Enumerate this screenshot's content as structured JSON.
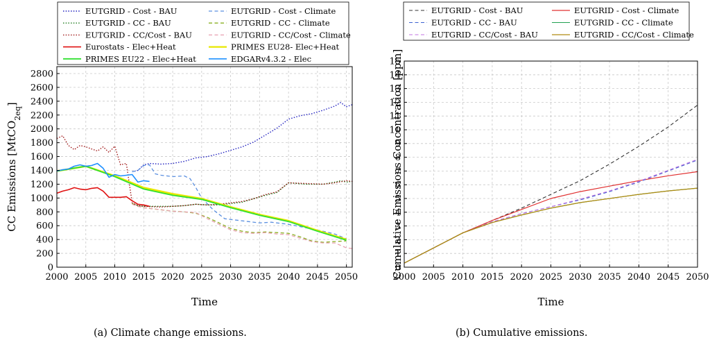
{
  "chart_data": [
    {
      "type": "line",
      "ylabel": "CC Emissions [MtCO₂eq]",
      "xlabel": "Time",
      "caption": "(a)  Climate change emissions.",
      "xlim": [
        2000,
        2051
      ],
      "ylim": [
        0,
        2900
      ],
      "xticks": [
        2000,
        2005,
        2010,
        2015,
        2020,
        2025,
        2030,
        2035,
        2040,
        2045,
        2050
      ],
      "yticks": [
        0,
        200,
        400,
        600,
        800,
        1000,
        1200,
        1400,
        1600,
        1800,
        2000,
        2200,
        2400,
        2600,
        2800
      ],
      "grid": true,
      "legend_position": "top",
      "series": [
        {
          "name": "EUTGRID - Cost - BAU",
          "color": "#1f1fbf",
          "dash": "dot",
          "width": 1.4,
          "x": [
            2013,
            2014,
            2015,
            2016,
            2018,
            2020,
            2022,
            2024,
            2026,
            2028,
            2030,
            2032,
            2034,
            2036,
            2038,
            2040,
            2042,
            2044,
            2046,
            2048,
            2049,
            2050,
            2051
          ],
          "y": [
            1380,
            1400,
            1480,
            1500,
            1490,
            1500,
            1530,
            1580,
            1600,
            1640,
            1690,
            1740,
            1810,
            1910,
            2010,
            2140,
            2190,
            2220,
            2270,
            2330,
            2380,
            2320,
            2350
          ]
        },
        {
          "name": "EUTGRID - Cost - Climate",
          "color": "#5a8fe0",
          "dash": "dash",
          "width": 1.3,
          "x": [
            2013,
            2014,
            2015,
            2016,
            2017,
            2018,
            2020,
            2022,
            2023,
            2024,
            2025,
            2027,
            2029,
            2031,
            2033,
            2035,
            2037,
            2040,
            2043,
            2046,
            2048,
            2050
          ],
          "y": [
            1380,
            1400,
            1470,
            1480,
            1350,
            1330,
            1310,
            1320,
            1280,
            1150,
            1000,
            830,
            700,
            680,
            660,
            640,
            650,
            620,
            570,
            520,
            480,
            410
          ]
        },
        {
          "name": "EUTGRID - CC - BAU",
          "color": "#1a7a1a",
          "dash": "dot",
          "width": 1.4,
          "x": [
            2013,
            2014,
            2015,
            2018,
            2020,
            2022,
            2024,
            2026,
            2028,
            2030,
            2032,
            2034,
            2036,
            2038,
            2040,
            2043,
            2046,
            2048,
            2049,
            2050,
            2051
          ],
          "y": [
            920,
            890,
            880,
            880,
            880,
            890,
            910,
            900,
            900,
            920,
            940,
            990,
            1040,
            1080,
            1220,
            1200,
            1200,
            1230,
            1250,
            1230,
            1240
          ]
        },
        {
          "name": "EUTGRID - CC - Climate",
          "color": "#8ab020",
          "dash": "dash",
          "width": 1.3,
          "x": [
            2013,
            2014,
            2015,
            2016,
            2018,
            2020,
            2022,
            2024,
            2026,
            2028,
            2030,
            2032,
            2034,
            2036,
            2038,
            2040,
            2042,
            2044,
            2046,
            2048,
            2050
          ],
          "y": [
            920,
            880,
            860,
            850,
            830,
            810,
            800,
            780,
            720,
            640,
            560,
            520,
            500,
            510,
            500,
            490,
            440,
            380,
            360,
            370,
            380
          ]
        },
        {
          "name": "EUTGRID - CC/Cost - BAU",
          "color": "#a01818",
          "dash": "dot",
          "width": 1.4,
          "x": [
            2000,
            2001,
            2002,
            2003,
            2004,
            2005,
            2006,
            2007,
            2008,
            2009,
            2010,
            2011,
            2012,
            2013,
            2014,
            2015,
            2018,
            2020,
            2022,
            2024,
            2026,
            2028,
            2030,
            2032,
            2034,
            2036,
            2038,
            2040,
            2043,
            2046,
            2048,
            2050,
            2051
          ],
          "y": [
            1860,
            1900,
            1760,
            1700,
            1760,
            1740,
            1710,
            1680,
            1740,
            1660,
            1750,
            1480,
            1500,
            930,
            890,
            880,
            870,
            880,
            890,
            910,
            900,
            910,
            930,
            950,
            990,
            1050,
            1090,
            1220,
            1210,
            1200,
            1220,
            1250,
            1240
          ]
        },
        {
          "name": "EUTGRID - CC/Cost - Climate",
          "color": "#e8a0b0",
          "dash": "dash",
          "width": 1.3,
          "x": [
            2013,
            2014,
            2015,
            2018,
            2020,
            2022,
            2024,
            2026,
            2028,
            2030,
            2032,
            2034,
            2036,
            2038,
            2040,
            2042,
            2044,
            2046,
            2048,
            2050,
            2051
          ],
          "y": [
            910,
            880,
            860,
            830,
            810,
            800,
            790,
            700,
            620,
            540,
            500,
            490,
            500,
            480,
            470,
            420,
            370,
            350,
            350,
            280,
            270
          ]
        },
        {
          "name": "Eurostats - Elec+Heat",
          "color": "#e01010",
          "dash": "solid",
          "width": 1.6,
          "x": [
            2000,
            2001,
            2002,
            2003,
            2004,
            2005,
            2006,
            2007,
            2008,
            2009,
            2010,
            2011,
            2012,
            2013,
            2014,
            2015,
            2016
          ],
          "y": [
            1070,
            1100,
            1120,
            1150,
            1130,
            1120,
            1140,
            1150,
            1100,
            1010,
            1010,
            1010,
            1020,
            960,
            910,
            900,
            880
          ]
        },
        {
          "name": "PRIMES EU28- Elec+Heat",
          "color": "#e8e800",
          "dash": "solid",
          "width": 2.6,
          "x": [
            2000,
            2005,
            2010,
            2015,
            2020,
            2025,
            2030,
            2035,
            2040,
            2045,
            2050
          ],
          "y": [
            1390,
            1460,
            1320,
            1150,
            1060,
            990,
            870,
            760,
            670,
            530,
            400
          ]
        },
        {
          "name": "PRIMES EU22 - Elec+Heat",
          "color": "#30e030",
          "dash": "solid",
          "width": 1.8,
          "x": [
            2000,
            2005,
            2010,
            2015,
            2020,
            2025,
            2030,
            2035,
            2040,
            2045,
            2050
          ],
          "y": [
            1390,
            1460,
            1310,
            1130,
            1040,
            980,
            860,
            750,
            660,
            520,
            390
          ]
        },
        {
          "name": "EDGARv4.3.2 - Elec",
          "color": "#1e90ff",
          "dash": "solid",
          "width": 1.6,
          "x": [
            2000,
            2001,
            2002,
            2003,
            2004,
            2005,
            2006,
            2007,
            2008,
            2009,
            2010,
            2011,
            2012,
            2013,
            2014,
            2015,
            2016
          ],
          "y": [
            1390,
            1410,
            1420,
            1460,
            1480,
            1460,
            1470,
            1500,
            1430,
            1300,
            1340,
            1320,
            1330,
            1340,
            1230,
            1250,
            1240
          ]
        }
      ]
    },
    {
      "type": "line",
      "ylabel": "Cumulative Emissions Concentration [ppm]",
      "xlabel": "Time",
      "caption": "(b)  Cumulative emissions.",
      "xlim": [
        2000,
        2050
      ],
      "ylim": [
        0,
        15
      ],
      "xticks": [
        2000,
        2005,
        2010,
        2015,
        2020,
        2025,
        2030,
        2035,
        2040,
        2045,
        2050
      ],
      "yticks": [
        0,
        1,
        2,
        3,
        4,
        5,
        6,
        7,
        8,
        9,
        10,
        11,
        12,
        13,
        14,
        15
      ],
      "grid": true,
      "legend_position": "top",
      "series": [
        {
          "name": "EUTGRID - Cost - BAU",
          "color": "#333333",
          "dash": "dash",
          "width": 1.1,
          "x": [
            2000,
            2005,
            2010,
            2015,
            2020,
            2025,
            2030,
            2035,
            2040,
            2045,
            2050
          ],
          "y": [
            0.3,
            1.4,
            2.5,
            3.4,
            4.3,
            5.3,
            6.3,
            7.5,
            8.8,
            10.2,
            11.8
          ]
        },
        {
          "name": "EUTGRID - Cost - Climate",
          "color": "#e03030",
          "dash": "solid",
          "width": 1.2,
          "x": [
            2000,
            2005,
            2010,
            2015,
            2020,
            2025,
            2030,
            2035,
            2040,
            2045,
            2050
          ],
          "y": [
            0.3,
            1.4,
            2.5,
            3.4,
            4.2,
            5.0,
            5.5,
            5.9,
            6.3,
            6.65,
            6.95
          ]
        },
        {
          "name": "EUTGRID - CC - BAU",
          "color": "#3a60d0",
          "dash": "dash",
          "width": 1.1,
          "x": [
            2000,
            2005,
            2010,
            2015,
            2020,
            2025,
            2030,
            2035,
            2040,
            2045,
            2050
          ],
          "y": [
            0.3,
            1.4,
            2.5,
            3.3,
            3.9,
            4.4,
            4.9,
            5.5,
            6.2,
            7.0,
            7.8
          ]
        },
        {
          "name": "EUTGRID - CC - Climate",
          "color": "#20a050",
          "dash": "solid",
          "width": 1.1,
          "x": [
            2000,
            2005,
            2010,
            2015,
            2020,
            2025,
            2030,
            2035,
            2040,
            2045,
            2050
          ],
          "y": [
            0.3,
            1.4,
            2.5,
            3.25,
            3.8,
            4.3,
            4.7,
            5.0,
            5.3,
            5.55,
            5.75
          ]
        },
        {
          "name": "EUTGRID - CC/Cost - BAU",
          "color": "#c070e0",
          "dash": "dash",
          "width": 1.1,
          "x": [
            2000,
            2005,
            2010,
            2015,
            2020,
            2025,
            2030,
            2035,
            2040,
            2045,
            2050
          ],
          "y": [
            0.3,
            1.4,
            2.5,
            3.3,
            3.9,
            4.4,
            4.95,
            5.55,
            6.25,
            7.05,
            7.85
          ]
        },
        {
          "name": "EUTGRID - CC/Cost - Climate",
          "color": "#b08a10",
          "dash": "solid",
          "width": 1.3,
          "x": [
            2000,
            2005,
            2010,
            2015,
            2020,
            2025,
            2030,
            2035,
            2040,
            2045,
            2050
          ],
          "y": [
            0.3,
            1.4,
            2.5,
            3.25,
            3.8,
            4.3,
            4.7,
            5.0,
            5.3,
            5.55,
            5.75
          ]
        }
      ]
    }
  ]
}
